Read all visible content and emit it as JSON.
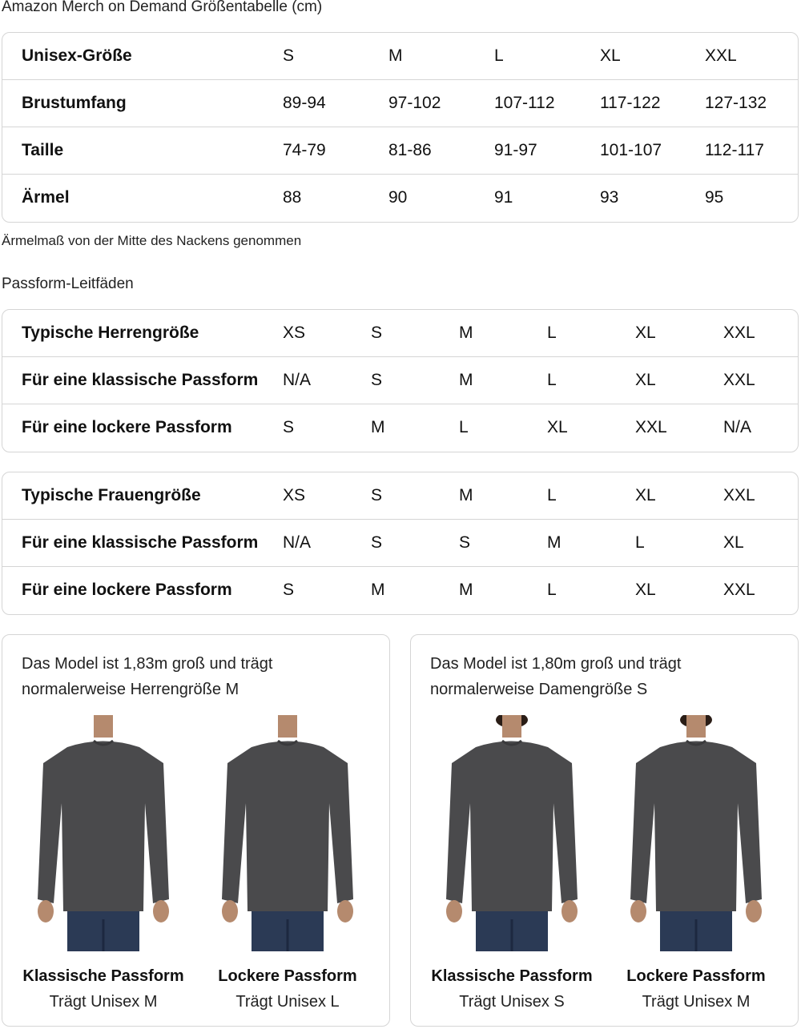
{
  "title": "Amazon Merch on Demand Größentabelle (cm)",
  "size_table": {
    "rows": [
      {
        "label": "Unisex-Größe",
        "values": [
          "S",
          "M",
          "L",
          "XL",
          "XXL"
        ]
      },
      {
        "label": "Brustumfang",
        "values": [
          "89-94",
          "97-102",
          "107-112",
          "117-122",
          "127-132"
        ]
      },
      {
        "label": "Taille",
        "values": [
          "74-79",
          "81-86",
          "91-97",
          "101-107",
          "112-117"
        ]
      },
      {
        "label": "Ärmel",
        "values": [
          "88",
          "90",
          "91",
          "93",
          "95"
        ]
      }
    ]
  },
  "note": "Ärmelmaß von der Mitte des Nackens genommen",
  "fit_heading": "Passform-Leitfäden",
  "men_table": {
    "rows": [
      {
        "label": "Typische Herrengröße",
        "values": [
          "XS",
          "S",
          "M",
          "L",
          "XL",
          "XXL"
        ]
      },
      {
        "label": "Für eine klassische Passform",
        "values": [
          "N/A",
          "S",
          "M",
          "L",
          "XL",
          "XXL"
        ]
      },
      {
        "label": "Für eine lockere Passform",
        "values": [
          "S",
          "M",
          "L",
          "XL",
          "XXL",
          "N/A"
        ]
      }
    ]
  },
  "women_table": {
    "rows": [
      {
        "label": "Typische Frauengröße",
        "values": [
          "XS",
          "S",
          "M",
          "L",
          "XL",
          "XXL"
        ]
      },
      {
        "label": "Für eine klassische Passform",
        "values": [
          "N/A",
          "S",
          "S",
          "M",
          "L",
          "XL"
        ]
      },
      {
        "label": "Für eine lockere Passform",
        "values": [
          "S",
          "M",
          "M",
          "L",
          "XL",
          "XXL"
        ]
      }
    ]
  },
  "panels": [
    {
      "text1": "Das Model ist 1,83m groß und trägt",
      "text2": "normalerweise Herrengröße M",
      "figures": [
        {
          "fit": "Klassische Passform",
          "wears": "Trägt Unisex M"
        },
        {
          "fit": "Lockere Passform",
          "wears": "Trägt Unisex L"
        }
      ]
    },
    {
      "text1": "Das Model ist 1,80m groß und trägt",
      "text2": "normalerweise Damengröße S",
      "figures": [
        {
          "fit": "Klassische Passform",
          "wears": "Trägt Unisex S"
        },
        {
          "fit": "Lockere Passform",
          "wears": "Trägt Unisex M"
        }
      ]
    }
  ],
  "colors": {
    "shirt": "#4a4a4c",
    "jeans": "#2b3a55",
    "border": "#d5d5d5"
  }
}
